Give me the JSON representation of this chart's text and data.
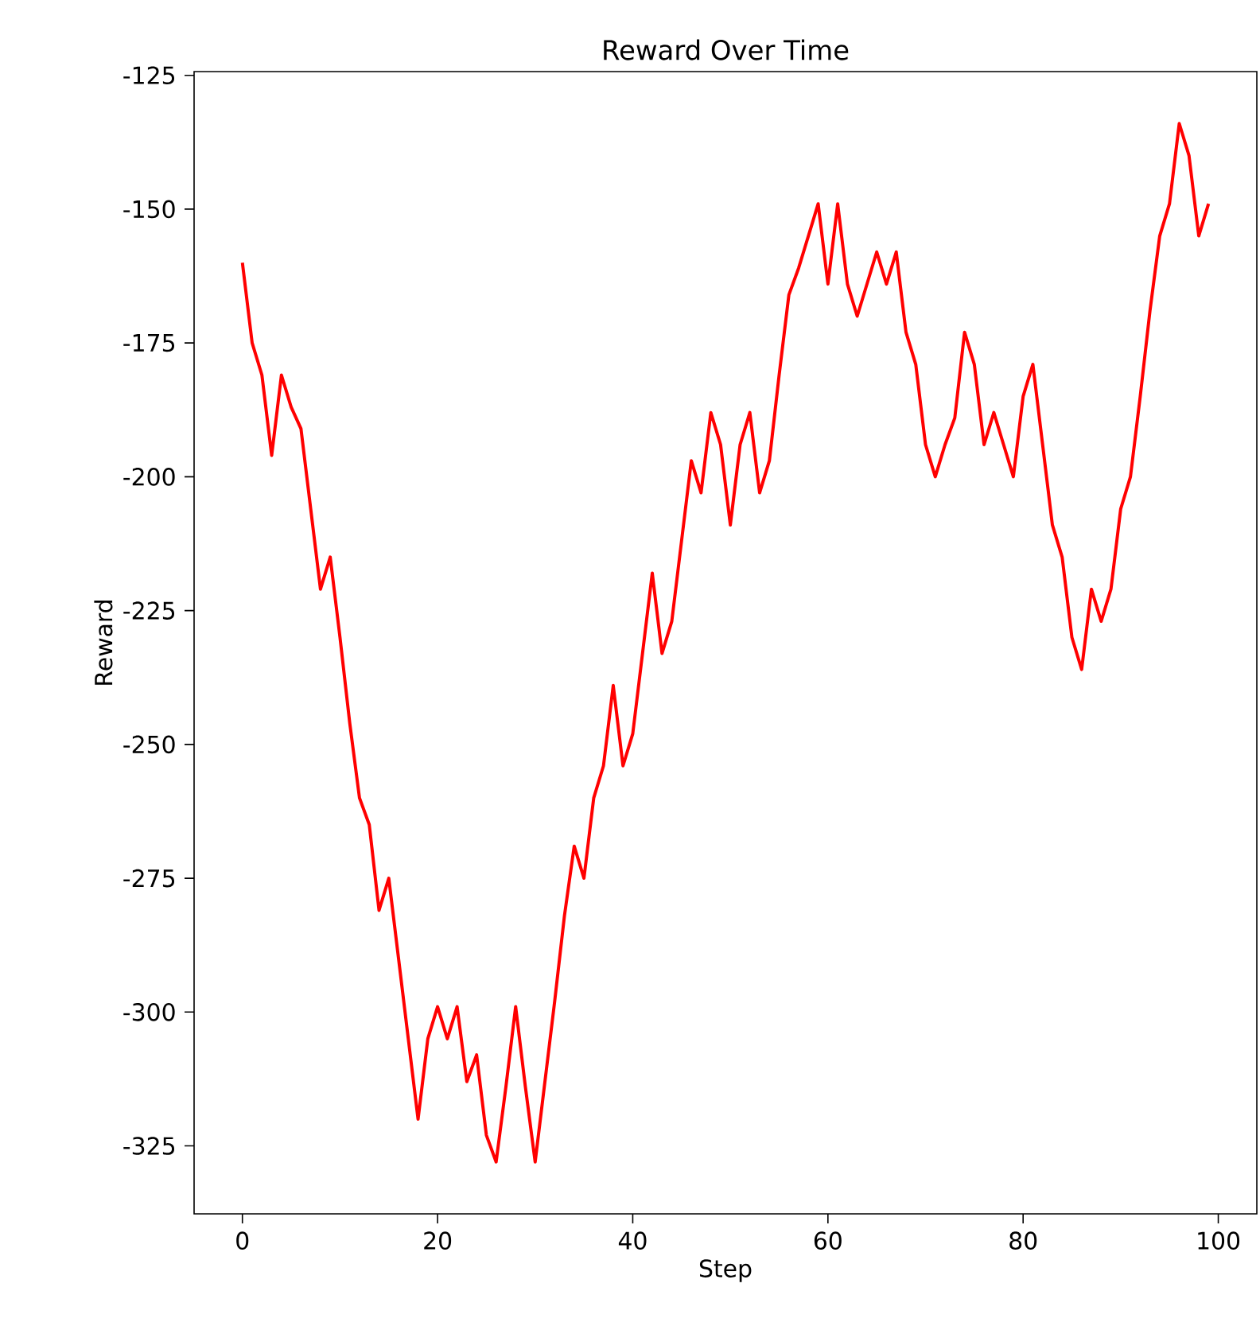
{
  "chart_data": {
    "type": "line",
    "title": "Reward Over Time",
    "xlabel": "Step",
    "ylabel": "Reward",
    "color": "#ff0000",
    "x": [
      0,
      1,
      2,
      3,
      4,
      5,
      6,
      7,
      8,
      9,
      10,
      11,
      12,
      13,
      14,
      15,
      16,
      17,
      18,
      19,
      20,
      21,
      22,
      23,
      24,
      25,
      26,
      27,
      28,
      29,
      30,
      31,
      32,
      33,
      34,
      35,
      36,
      37,
      38,
      39,
      40,
      41,
      42,
      43,
      44,
      45,
      46,
      47,
      48,
      49,
      50,
      51,
      52,
      53,
      54,
      55,
      56,
      57,
      58,
      59,
      60,
      61,
      62,
      63,
      64,
      65,
      66,
      67,
      68,
      69,
      70,
      71,
      72,
      73,
      74,
      75,
      76,
      77,
      78,
      79,
      80,
      81,
      82,
      83,
      84,
      85,
      86,
      87,
      88,
      89,
      90,
      91,
      92,
      93,
      94,
      95,
      96,
      97,
      98,
      99
    ],
    "values": [
      -160,
      -175,
      -181,
      -196,
      -181,
      -187,
      -191,
      -206,
      -221,
      -215,
      -230,
      -246,
      -260,
      -265,
      -281,
      -275,
      -290,
      -305,
      -320,
      -305,
      -299,
      -305,
      -299,
      -313,
      -308,
      -323,
      -328,
      -314,
      -299,
      -314,
      -328,
      -313,
      -298,
      -282,
      -269,
      -275,
      -260,
      -254,
      -239,
      -254,
      -248,
      -233,
      -218,
      -233,
      -227,
      -212,
      -197,
      -203,
      -188,
      -194,
      -209,
      -194,
      -188,
      -203,
      -197,
      -181,
      -166,
      -161,
      -155,
      -149,
      -164,
      -149,
      -164,
      -170,
      -164,
      -158,
      -164,
      -158,
      -173,
      -179,
      -194,
      -200,
      -194,
      -189,
      -173,
      -179,
      -194,
      -188,
      -194,
      -200,
      -185,
      -179,
      -194,
      -209,
      -215,
      -230,
      -236,
      -221,
      -227,
      -221,
      -206,
      -200,
      -185,
      -169,
      -155,
      -149,
      -134,
      -140,
      -155,
      -149
    ],
    "xlim": [
      -4.95,
      103.95
    ],
    "ylim": [
      -337.7,
      -124.3
    ],
    "xticks": [
      0,
      20,
      40,
      60,
      80,
      100
    ],
    "yticks": [
      -325,
      -300,
      -275,
      -250,
      -225,
      -200,
      -175,
      -150,
      -125
    ],
    "grid": false,
    "marker": "none",
    "line_style": "solid"
  }
}
